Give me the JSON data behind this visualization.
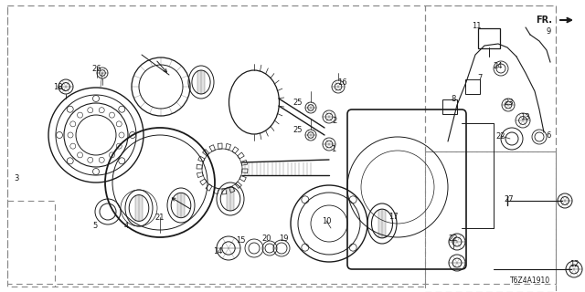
{
  "bg_color": "#ffffff",
  "text_color": "#1a1a1a",
  "diagram_code": "T6Z4A1910",
  "line_color": "#1a1a1a",
  "border_color": "#888888",
  "fig_w": 6.4,
  "fig_h": 3.2,
  "dpi": 100
}
